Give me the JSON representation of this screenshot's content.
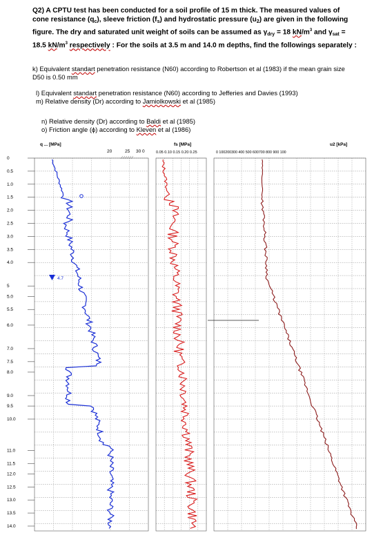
{
  "question": {
    "lead": "Q2) A CPTU test has been conducted for a soil profile of 15 m thick. The measured values of cone resistance (q",
    "qc_sub": "c",
    "mid1": "), sleeve friction (f",
    "fs_sub": "s",
    "mid2": ") and hydrostatic pressure (u",
    "u_sub": "2",
    "mid3": ") are given in the following figure. The dry and saturated unit weight of soils can be assumed as ",
    "gamma": "γ",
    "gdry_sub": "dry",
    "gdry_val": " = 18 ",
    "kn": "kN",
    "m3": "/m",
    "sup3": "3",
    "and": " and ",
    "gsat_sub": "sat",
    "gsat_val": " = 18.5 ",
    "respectively": "respectively",
    "tail": ": For the soils at 3.5 m and 14.0 m depths, find the followings separately :"
  },
  "items": {
    "k_pre": "k) Equivalent ",
    "k_wavy": "standart",
    "k_post": " penetration resistance (N60) according to Robertson et al (1983) if the mean grain size D50 is 0.50 mm",
    "l_pre": "l) Equivalent ",
    "l_wavy": "standart",
    "l_post": " penetration resistance (N60) according to Jefferies and Davies (1993)",
    "m_pre": "m) Relative density (Dr) according to ",
    "m_wavy": "Jamiolkowski",
    "m_post": " et al (1985)",
    "n_pre": "n) Relative density (Dr) according to ",
    "n_wavy": "Baldi",
    "n_post": " et al (1985)",
    "o_pre": "o) Friction angle (ϕ) according to ",
    "o_wavy": "Kleven",
    "o_post": " et al (1986)"
  },
  "figure": {
    "qc_header": "q ... [MPa]",
    "qc_ticks": [
      "20",
      "25",
      "30 0"
    ],
    "fs_header": "fs [MPa]",
    "fs_ticks": "0.05 0.10 0.15 0.20 0.25",
    "u2_header": "u2 [kPa]",
    "u2_ticks": "0 100200300 400 500 600700 800 900 100",
    "water_label": "4.7",
    "depth_labels": [
      "0",
      "0.5",
      "1.0",
      "1.5",
      "2.0",
      "2.5",
      "3.0",
      "3.5",
      "4.0",
      "5",
      "5.0",
      "5.5",
      "6.0",
      "7.0",
      "7.5",
      "8.0",
      "9.0",
      "9.5",
      "10.0",
      "11.0",
      "11.5",
      "12.0",
      "12.5",
      "13.0",
      "13.5",
      "14.0"
    ],
    "colors": {
      "qc": "#1a2fd6",
      "fs": "#d81c1c",
      "u2": "#8b1a1a",
      "grid": "#777777"
    }
  }
}
